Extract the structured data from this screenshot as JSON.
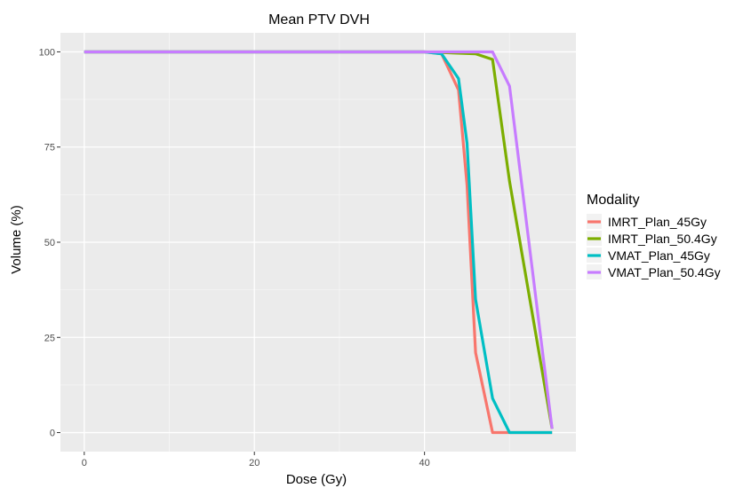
{
  "chart_data": {
    "type": "line",
    "title": "Mean PTV DVH",
    "xlabel": "Dose (Gy)",
    "ylabel": "Volume (%)",
    "xlim": [
      -2.8,
      57.8
    ],
    "ylim": [
      -5,
      105
    ],
    "x_ticks": [
      0,
      20,
      40
    ],
    "y_ticks": [
      0,
      25,
      50,
      75,
      100
    ],
    "grid": true,
    "legend": {
      "title": "Modality",
      "position": "right"
    },
    "series": [
      {
        "name": "IMRT_Plan_45Gy",
        "color": "#F8766D",
        "points": [
          [
            0,
            100
          ],
          [
            40,
            100
          ],
          [
            42,
            99.5
          ],
          [
            44,
            90
          ],
          [
            45,
            65
          ],
          [
            46,
            21
          ],
          [
            48,
            0
          ],
          [
            55,
            0
          ]
        ]
      },
      {
        "name": "IMRT_Plan_50.4Gy",
        "color": "#7CAE00",
        "points": [
          [
            0,
            100
          ],
          [
            40,
            100
          ],
          [
            46,
            99.5
          ],
          [
            48,
            98
          ],
          [
            50,
            66
          ],
          [
            55,
            1
          ]
        ]
      },
      {
        "name": "VMAT_Plan_45Gy",
        "color": "#00BFC4",
        "points": [
          [
            0,
            100
          ],
          [
            40,
            100
          ],
          [
            42,
            99.5
          ],
          [
            44,
            93
          ],
          [
            45,
            76
          ],
          [
            46,
            35
          ],
          [
            48,
            9
          ],
          [
            50,
            0
          ],
          [
            55,
            0
          ]
        ]
      },
      {
        "name": "VMAT_Plan_50.4Gy",
        "color": "#C77CFF",
        "points": [
          [
            0,
            100
          ],
          [
            40,
            100
          ],
          [
            46,
            100
          ],
          [
            48,
            100
          ],
          [
            50,
            91
          ],
          [
            55,
            1
          ]
        ]
      }
    ]
  }
}
